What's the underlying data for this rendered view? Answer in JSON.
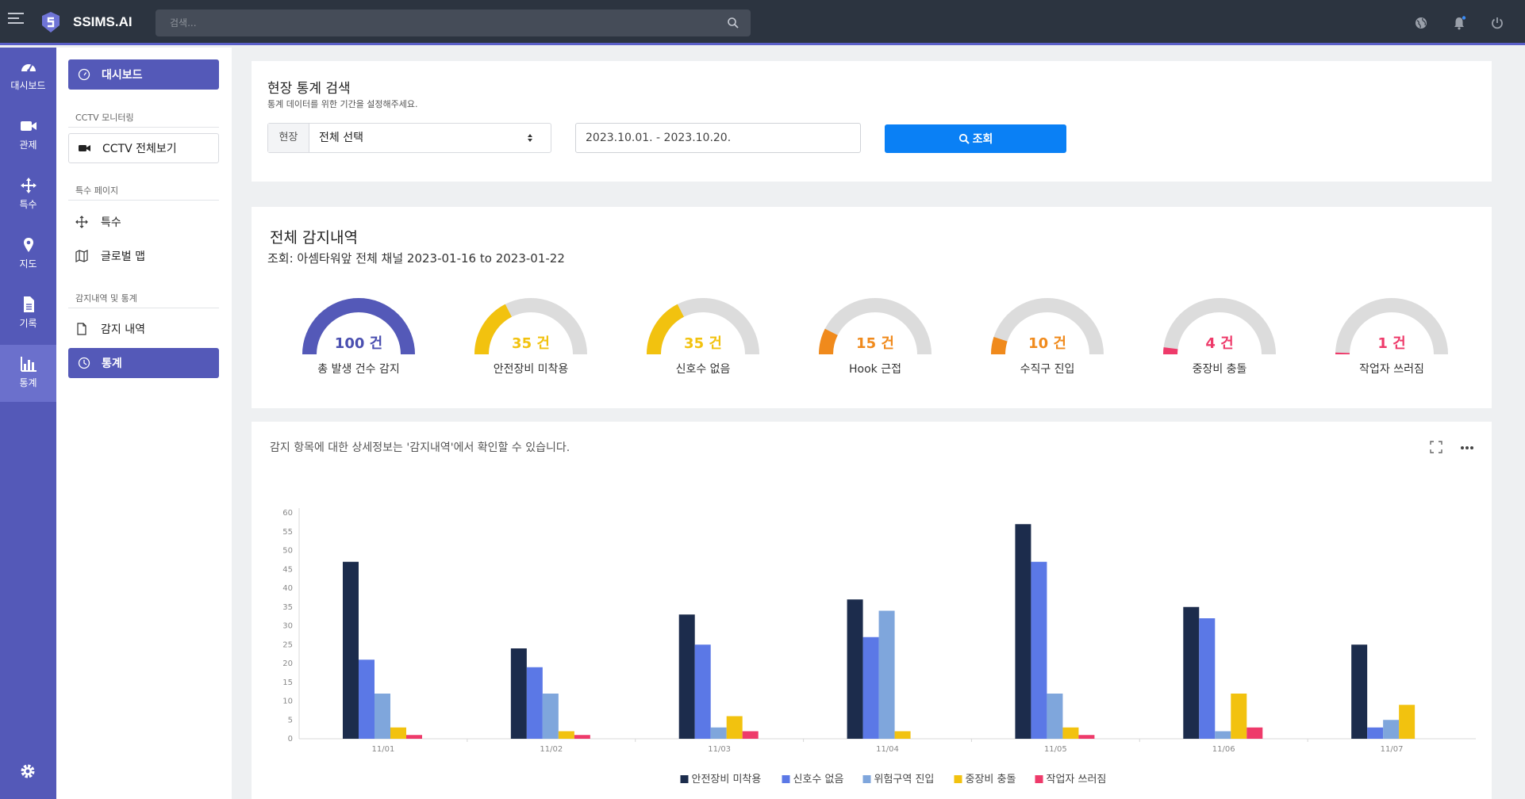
{
  "app": {
    "brand": "SSIMS.AI",
    "search_placeholder": "검색..."
  },
  "rail": {
    "items": [
      {
        "label": "대시보드",
        "icon": "dashboard-gauge-icon"
      },
      {
        "label": "관제",
        "icon": "video-camera-icon"
      },
      {
        "label": "특수",
        "icon": "move-arrows-icon"
      },
      {
        "label": "지도",
        "icon": "map-pin-icon"
      },
      {
        "label": "기록",
        "icon": "document-icon"
      },
      {
        "label": "통계",
        "icon": "bar-chart-icon"
      }
    ],
    "active": "통계"
  },
  "sidebar": {
    "dashboard_btn": "대시보드",
    "section_cctv": "CCTV 모니터링",
    "cctv_btn": "CCTV 전체보기",
    "section_special": "특수 페이지",
    "link_special": "특수",
    "link_global_map": "글로벌 맵",
    "section_detection": "감지내역 및 통계",
    "link_history": "감지 내역",
    "stats_btn": "통계"
  },
  "search_card": {
    "title": "현장 통계 검색",
    "subtitle": "통계 데이터를 위한 기간을 설정해주세요.",
    "site_label": "현장",
    "site_value": "전체 선택",
    "date_range": "2023.10.01. - 2023.10.20.",
    "query_label": "조회"
  },
  "summary_card": {
    "title": "전체 감지내역",
    "query_text": "조회: 아셈타워앞 전체 채널 2023-01-16 to 2023-01-22",
    "gauges": [
      {
        "value": "100 건",
        "caption": "총 발생 건수 감지",
        "ratio": 1.0,
        "color": "#5459b8"
      },
      {
        "value": "35 건",
        "caption": "안전장비 미착용",
        "ratio": 0.35,
        "color": "#f2c20f"
      },
      {
        "value": "35 건",
        "caption": "신호수 없음",
        "ratio": 0.35,
        "color": "#f2c20f"
      },
      {
        "value": "15 건",
        "caption": "Hook 근접",
        "ratio": 0.15,
        "color": "#f08a1c"
      },
      {
        "value": "10 건",
        "caption": "수직구 진입",
        "ratio": 0.1,
        "color": "#f08a1c"
      },
      {
        "value": "4 건",
        "caption": "중장비 충돌",
        "ratio": 0.04,
        "color": "#ee3a6a"
      },
      {
        "value": "1 건",
        "caption": "작업자 쓰러짐",
        "ratio": 0.01,
        "color": "#ee3a6a"
      }
    ]
  },
  "chart_card": {
    "note": "감지 항목에 대한 상세정보는 '감지내역'에서 확인할 수 있습니다."
  },
  "chart_data": {
    "type": "bar",
    "categories": [
      "11/01",
      "11/02",
      "11/03",
      "11/04",
      "11/05",
      "11/06",
      "11/07"
    ],
    "ylim": [
      0,
      60
    ],
    "yticks": [
      0,
      5,
      10,
      15,
      20,
      25,
      30,
      35,
      40,
      45,
      50,
      55,
      60
    ],
    "legend_position": "bottom",
    "grid": false,
    "series": [
      {
        "name": "안전장비 미착용",
        "color": "#1c2c4c",
        "values": [
          47,
          24,
          33,
          37,
          57,
          35,
          25
        ]
      },
      {
        "name": "신호수 없음",
        "color": "#5b78e6",
        "values": [
          21,
          19,
          25,
          27,
          47,
          32,
          3
        ]
      },
      {
        "name": "위험구역 진입",
        "color": "#7fa6dc",
        "values": [
          12,
          12,
          3,
          34,
          12,
          2,
          5
        ]
      },
      {
        "name": "중장비 충돌",
        "color": "#f2c20f",
        "values": [
          3,
          2,
          6,
          2,
          3,
          12,
          9
        ]
      },
      {
        "name": "작업자 쓰러짐",
        "color": "#ee3a6a",
        "values": [
          1,
          1,
          2,
          0,
          1,
          3,
          0
        ]
      }
    ]
  }
}
